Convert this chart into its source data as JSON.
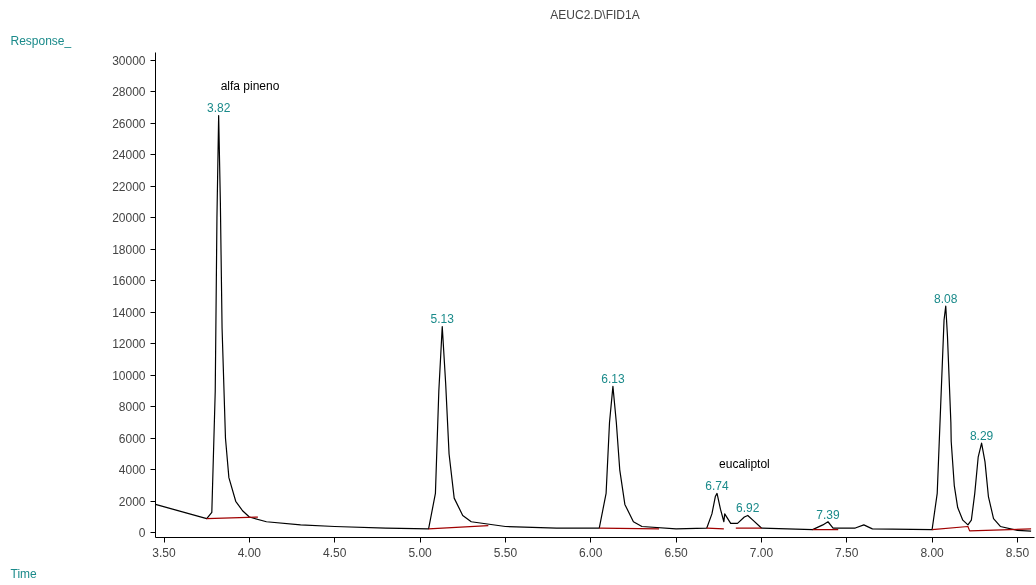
{
  "chart_data": {
    "type": "line",
    "title": "AEUC2.D\\FID1A",
    "ylabel": "Response_",
    "xlim": [
      3.45,
      8.6
    ],
    "ylim": [
      -300,
      30500
    ],
    "xticks": [
      {
        "value": 3.5,
        "label": "3.50"
      },
      {
        "value": 4.0,
        "label": "4.00"
      },
      {
        "value": 4.5,
        "label": "4.50"
      },
      {
        "value": 5.0,
        "label": "5.00"
      },
      {
        "value": 5.5,
        "label": "5.50"
      },
      {
        "value": 6.0,
        "label": "6.00"
      },
      {
        "value": 6.5,
        "label": "6.50"
      },
      {
        "value": 7.0,
        "label": "7.00"
      },
      {
        "value": 7.5,
        "label": "7.50"
      },
      {
        "value": 8.0,
        "label": "8.00"
      },
      {
        "value": 8.5,
        "label": "8.50"
      }
    ],
    "yticks": [
      0,
      2000,
      4000,
      6000,
      8000,
      10000,
      12000,
      14000,
      16000,
      18000,
      20000,
      22000,
      24000,
      26000,
      28000,
      30000
    ],
    "grid": false,
    "series": [
      {
        "color": "#000000",
        "x": [
          3.45,
          3.55,
          3.65,
          3.75,
          3.78,
          3.8,
          3.81,
          3.82,
          3.83,
          3.84,
          3.86,
          3.88,
          3.92,
          3.96,
          4.0,
          4.1,
          4.3,
          4.5,
          4.8,
          5.05,
          5.09,
          5.11,
          5.13,
          5.15,
          5.17,
          5.2,
          5.25,
          5.3,
          5.5,
          5.8,
          6.05,
          6.09,
          6.11,
          6.13,
          6.15,
          6.17,
          6.2,
          6.25,
          6.3,
          6.5,
          6.68,
          6.71,
          6.73,
          6.74,
          6.76,
          6.78,
          6.785,
          6.82,
          6.86,
          6.9,
          6.92,
          6.95,
          7.0,
          7.3,
          7.36,
          7.39,
          7.42,
          7.55,
          7.6,
          7.65,
          8.0,
          8.03,
          8.05,
          8.07,
          8.08,
          8.09,
          8.11,
          8.112,
          8.13,
          8.15,
          8.18,
          8.21,
          8.23,
          8.25,
          8.27,
          8.29,
          8.31,
          8.33,
          8.36,
          8.4,
          8.5,
          8.58
        ],
        "values": [
          1800,
          1500,
          1200,
          900,
          1300,
          9000,
          20000,
          26500,
          21000,
          13000,
          6000,
          3500,
          2000,
          1400,
          1000,
          700,
          500,
          400,
          300,
          250,
          2500,
          9000,
          13100,
          9500,
          5000,
          2200,
          1100,
          700,
          400,
          300,
          300,
          2500,
          7000,
          9300,
          7000,
          4000,
          1800,
          700,
          400,
          250,
          300,
          1200,
          2300,
          2500,
          1500,
          700,
          1200,
          600,
          600,
          1000,
          1100,
          800,
          300,
          200,
          500,
          700,
          300,
          300,
          500,
          250,
          200,
          2500,
          8000,
          13500,
          14400,
          12500,
          7000,
          5800,
          3000,
          1600,
          800,
          500,
          800,
          2500,
          4800,
          5700,
          4500,
          2300,
          900,
          400,
          150,
          100
        ]
      },
      {
        "color": "#a00000",
        "x": [
          3.75,
          4.05,
          4.06,
          5.05,
          5.4,
          5.41,
          6.05,
          6.4,
          6.41,
          6.68,
          6.78,
          6.79,
          6.85,
          7.0,
          7.01,
          7.3,
          7.45,
          7.46,
          8.0,
          8.21,
          8.22,
          8.58
        ],
        "values": [
          900,
          1000,
          null,
          250,
          450,
          null,
          300,
          250,
          null,
          300,
          250,
          null,
          300,
          300,
          null,
          200,
          200,
          null,
          200,
          400,
          120,
          250
        ]
      }
    ],
    "annotations": [
      {
        "text": "alfa pineno",
        "x": 3.82,
        "y": 26500
      },
      {
        "text": "3.82",
        "x": 3.82,
        "y": 26500
      },
      {
        "text": "5.13",
        "x": 5.13,
        "y": 13100
      },
      {
        "text": "6.13",
        "x": 6.13,
        "y": 9300
      },
      {
        "text": "6.74",
        "x": 6.74,
        "y": 2500
      },
      {
        "text": "eucaliptol",
        "x": 6.74,
        "y": 2500
      },
      {
        "text": "6.92",
        "x": 6.92,
        "y": 1100
      },
      {
        "text": "7.39",
        "x": 7.39,
        "y": 700
      },
      {
        "text": "8.08",
        "x": 8.08,
        "y": 14400
      },
      {
        "text": "8.29",
        "x": 8.29,
        "y": 5700
      },
      "Time"
    ]
  }
}
